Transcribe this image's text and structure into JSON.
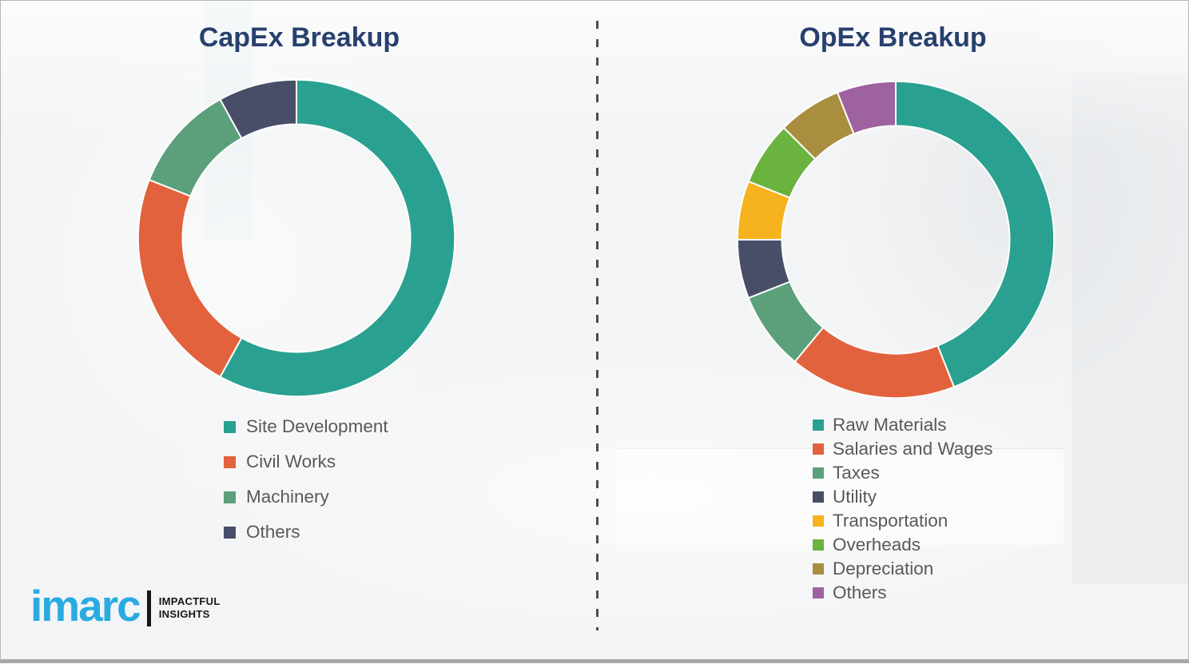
{
  "page": {
    "background": "#f3f4f5",
    "border_color": "#a6a6a6",
    "divider_color": "#4d4d4d",
    "title_color": "#27406e",
    "legend_text_color": "#595959"
  },
  "logo": {
    "brand": "imarc",
    "tagline_line1": "IMPACTFUL",
    "tagline_line2": "INSIGHTS",
    "brand_color": "#29abe2",
    "tagline_color": "#161616"
  },
  "chart_data": [
    {
      "type": "donut",
      "title": "CapEx Breakup",
      "unit": "percent_share_estimated",
      "start_angle_deg": 0,
      "direction": "clockwise",
      "legend_position": "below-left",
      "inner_radius_ratio": 0.72,
      "segments": [
        {
          "label": "Site Development",
          "value": 58,
          "color": "#2aa190"
        },
        {
          "label": "Civil Works",
          "value": 23,
          "color": "#e2623d"
        },
        {
          "label": "Machinery",
          "value": 11,
          "color": "#5ba07a"
        },
        {
          "label": "Others",
          "value": 8,
          "color": "#494e68"
        }
      ]
    },
    {
      "type": "donut",
      "title": "OpEx Breakup",
      "unit": "percent_share_estimated",
      "start_angle_deg": 0,
      "direction": "clockwise",
      "legend_position": "below-left",
      "inner_radius_ratio": 0.72,
      "segments": [
        {
          "label": "Raw Materials",
          "value": 44,
          "color": "#2aa190"
        },
        {
          "label": "Salaries and Wages",
          "value": 17,
          "color": "#e2623d"
        },
        {
          "label": "Taxes",
          "value": 8,
          "color": "#5ba07a"
        },
        {
          "label": "Utility",
          "value": 6,
          "color": "#494e68"
        },
        {
          "label": "Transportation",
          "value": 6,
          "color": "#f6b31e"
        },
        {
          "label": "Overheads",
          "value": 6.5,
          "color": "#6bb33f"
        },
        {
          "label": "Depreciation",
          "value": 6.5,
          "color": "#a98e3f"
        },
        {
          "label": "Others",
          "value": 6,
          "color": "#9f62a0"
        }
      ]
    }
  ]
}
